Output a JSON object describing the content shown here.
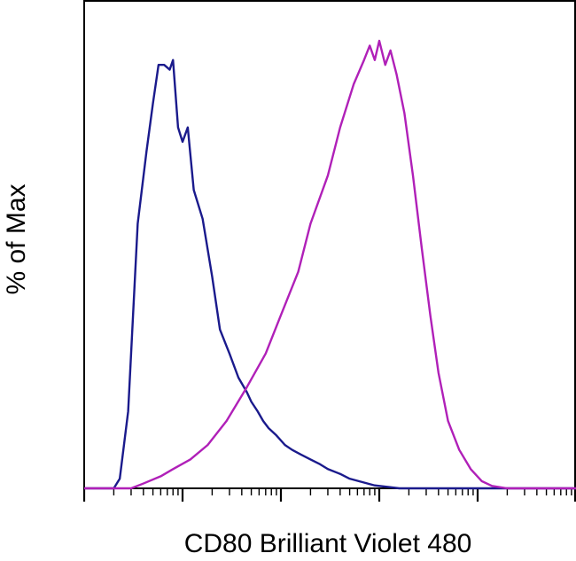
{
  "chart_data": {
    "type": "line",
    "title": "",
    "xlabel": "CD80 Brilliant Violet 480",
    "ylabel": "% of Max",
    "x_scale": "log",
    "xlim": [
      1,
      100000
    ],
    "ylim": [
      0,
      100
    ],
    "grid": false,
    "legend": "none",
    "series": [
      {
        "color": "#1a1a8c",
        "points": [
          [
            1.0,
            0
          ],
          [
            2.0,
            0
          ],
          [
            2.3,
            2
          ],
          [
            2.8,
            16
          ],
          [
            3.5,
            55
          ],
          [
            4.3,
            70
          ],
          [
            5.0,
            80
          ],
          [
            5.7,
            88
          ],
          [
            6.5,
            88
          ],
          [
            7.4,
            87
          ],
          [
            8.0,
            89
          ],
          [
            9.0,
            75
          ],
          [
            10.0,
            72
          ],
          [
            11.3,
            75
          ],
          [
            13.0,
            62
          ],
          [
            16.0,
            56
          ],
          [
            20.0,
            44
          ],
          [
            24.0,
            33
          ],
          [
            30.0,
            28
          ],
          [
            37.0,
            23
          ],
          [
            45.0,
            20
          ],
          [
            50.0,
            18
          ],
          [
            58.0,
            16
          ],
          [
            66.0,
            14
          ],
          [
            75.0,
            12.5
          ],
          [
            90.0,
            11
          ],
          [
            110.0,
            9
          ],
          [
            130.0,
            8
          ],
          [
            160.0,
            7
          ],
          [
            200.0,
            6
          ],
          [
            250.0,
            5
          ],
          [
            300.0,
            4
          ],
          [
            400.0,
            3
          ],
          [
            500.0,
            2
          ],
          [
            700.0,
            1.2
          ],
          [
            900.0,
            0.6
          ],
          [
            1200.0,
            0.3
          ],
          [
            1600.0,
            0
          ],
          [
            100000.0,
            0
          ]
        ]
      },
      {
        "color": "#b020b8",
        "points": [
          [
            1.0,
            0
          ],
          [
            3.0,
            0
          ],
          [
            4.0,
            1
          ],
          [
            6.0,
            2.5
          ],
          [
            8.0,
            4
          ],
          [
            12.0,
            6
          ],
          [
            18.0,
            9
          ],
          [
            28.0,
            14
          ],
          [
            45.0,
            21
          ],
          [
            70.0,
            28
          ],
          [
            100.0,
            36
          ],
          [
            150.0,
            45
          ],
          [
            200.0,
            55
          ],
          [
            300.0,
            65
          ],
          [
            400.0,
            75
          ],
          [
            550.0,
            84
          ],
          [
            700.0,
            89
          ],
          [
            800.0,
            92
          ],
          [
            900.0,
            89
          ],
          [
            1000.0,
            93
          ],
          [
            1150.0,
            88
          ],
          [
            1300.0,
            91
          ],
          [
            1500.0,
            86
          ],
          [
            1800.0,
            78
          ],
          [
            2200.0,
            65
          ],
          [
            2700.0,
            50
          ],
          [
            3300.0,
            36
          ],
          [
            4000.0,
            24
          ],
          [
            5000.0,
            14
          ],
          [
            6500.0,
            8
          ],
          [
            8500.0,
            4
          ],
          [
            11000.0,
            1.5
          ],
          [
            14000.0,
            0.5
          ],
          [
            20000.0,
            0
          ],
          [
            100000.0,
            0
          ]
        ]
      }
    ]
  }
}
